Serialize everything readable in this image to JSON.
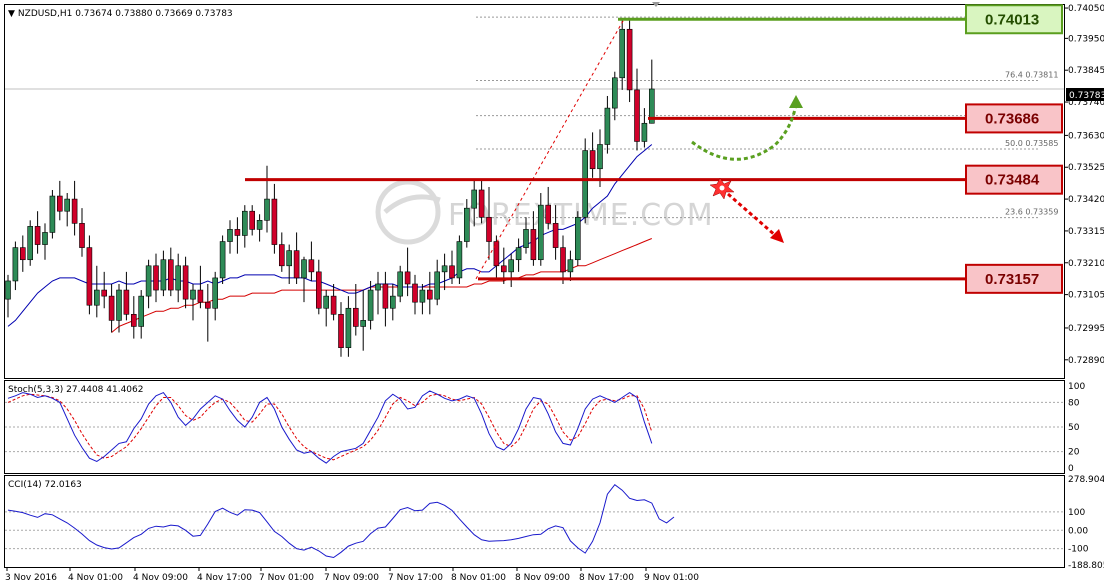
{
  "main_panel": {
    "info": "NZDUSD,H1  0.73674 0.73880 0.73669 0.73783",
    "current_price": "0.73783",
    "watermark": "FOREXTIME.COM"
  },
  "stoch_panel": {
    "info": "Stoch(5,3,3) 27.4408 41.4062"
  },
  "cci_panel": {
    "info": "CCI(14) 72.0163"
  },
  "chart_data": [
    {
      "type": "candlestick",
      "symbol": "NZDUSD",
      "timeframe": "H1",
      "ylim": [
        0.7283,
        0.7406
      ],
      "y_ticks": [
        "0.74050",
        "0.73950",
        "0.73845",
        "0.73740",
        "0.73630",
        "0.73525",
        "0.73420",
        "0.73315",
        "0.73210",
        "0.73105",
        "0.72995",
        "0.72890"
      ],
      "x_ticks": [
        "3 Nov 2016",
        "4 Nov 01:00",
        "4 Nov 09:00",
        "4 Nov 17:00",
        "7 Nov 01:00",
        "7 Nov 09:00",
        "7 Nov 17:00",
        "8 Nov 01:00",
        "8 Nov 09:00",
        "8 Nov 17:00",
        "9 Nov 01:00"
      ],
      "levels": [
        {
          "label": "0.74013",
          "value": 0.74013,
          "color": "#5a9e1e"
        },
        {
          "label": "0.73686",
          "value": 0.73686,
          "color": "#c00000"
        },
        {
          "label": "0.73484",
          "value": 0.73484,
          "color": "#c00000"
        },
        {
          "label": "0.73157",
          "value": 0.73157,
          "color": "#c00000"
        }
      ],
      "fibo": [
        {
          "label": "76.4",
          "price": "0.73811",
          "value": 0.73811
        },
        {
          "label": "50.0",
          "price": "0.73585",
          "value": 0.73585
        },
        {
          "label": "23.6",
          "price": "0.73359",
          "value": 0.73359
        }
      ],
      "fibo_extra_levels": [
        0.7402,
        0.73695
      ],
      "candles": [
        [
          0.7309,
          0.7317,
          0.7303,
          0.7315
        ],
        [
          0.7315,
          0.7328,
          0.7312,
          0.7326
        ],
        [
          0.7326,
          0.733,
          0.7318,
          0.7322
        ],
        [
          0.7322,
          0.7335,
          0.732,
          0.7333
        ],
        [
          0.7333,
          0.7338,
          0.7324,
          0.7327
        ],
        [
          0.7327,
          0.7334,
          0.7322,
          0.7331
        ],
        [
          0.7331,
          0.7345,
          0.7329,
          0.7343
        ],
        [
          0.7343,
          0.7348,
          0.7335,
          0.7338
        ],
        [
          0.7338,
          0.7344,
          0.7333,
          0.7342
        ],
        [
          0.7342,
          0.7348,
          0.733,
          0.7334
        ],
        [
          0.7334,
          0.7339,
          0.7323,
          0.7326
        ],
        [
          0.7326,
          0.733,
          0.7304,
          0.7307
        ],
        [
          0.7307,
          0.732,
          0.7303,
          0.7312
        ],
        [
          0.7312,
          0.7318,
          0.7306,
          0.731
        ],
        [
          0.731,
          0.7314,
          0.7298,
          0.7302
        ],
        [
          0.7302,
          0.7314,
          0.7298,
          0.7312
        ],
        [
          0.7312,
          0.7318,
          0.7302,
          0.7304
        ],
        [
          0.7304,
          0.731,
          0.7296,
          0.73
        ],
        [
          0.73,
          0.7312,
          0.7296,
          0.731
        ],
        [
          0.731,
          0.7322,
          0.7306,
          0.732
        ],
        [
          0.732,
          0.7324,
          0.7308,
          0.7312
        ],
        [
          0.7312,
          0.7325,
          0.731,
          0.7322
        ],
        [
          0.7322,
          0.7326,
          0.731,
          0.7312
        ],
        [
          0.7312,
          0.7324,
          0.7308,
          0.732
        ],
        [
          0.732,
          0.7323,
          0.7306,
          0.7309
        ],
        [
          0.7309,
          0.7314,
          0.7302,
          0.7312
        ],
        [
          0.7312,
          0.732,
          0.7306,
          0.7308
        ],
        [
          0.7308,
          0.7314,
          0.7295,
          0.7306
        ],
        [
          0.7306,
          0.7318,
          0.7302,
          0.7316
        ],
        [
          0.7316,
          0.733,
          0.7314,
          0.7328
        ],
        [
          0.7328,
          0.7335,
          0.7324,
          0.7332
        ],
        [
          0.7332,
          0.7336,
          0.7324,
          0.733
        ],
        [
          0.733,
          0.734,
          0.7326,
          0.7338
        ],
        [
          0.7338,
          0.734,
          0.733,
          0.7332
        ],
        [
          0.7332,
          0.7337,
          0.7328,
          0.7335
        ],
        [
          0.7335,
          0.7353,
          0.7331,
          0.7342
        ],
        [
          0.7342,
          0.7347,
          0.7324,
          0.7327
        ],
        [
          0.7327,
          0.7331,
          0.7318,
          0.732
        ],
        [
          0.732,
          0.7327,
          0.7314,
          0.7325
        ],
        [
          0.7325,
          0.7331,
          0.7314,
          0.7316
        ],
        [
          0.7316,
          0.7323,
          0.7308,
          0.7322
        ],
        [
          0.7322,
          0.7328,
          0.7315,
          0.7318
        ],
        [
          0.7318,
          0.7322,
          0.7304,
          0.7306
        ],
        [
          0.7306,
          0.7312,
          0.73,
          0.731
        ],
        [
          0.731,
          0.7314,
          0.7302,
          0.7304
        ],
        [
          0.7304,
          0.7308,
          0.729,
          0.7293
        ],
        [
          0.7293,
          0.731,
          0.729,
          0.7306
        ],
        [
          0.7306,
          0.7314,
          0.7297,
          0.73
        ],
        [
          0.73,
          0.7312,
          0.7292,
          0.7302
        ],
        [
          0.7302,
          0.7315,
          0.7299,
          0.7312
        ],
        [
          0.7312,
          0.7318,
          0.7304,
          0.7314
        ],
        [
          0.7314,
          0.7318,
          0.73,
          0.7306
        ],
        [
          0.7306,
          0.7314,
          0.7302,
          0.731
        ],
        [
          0.731,
          0.732,
          0.7308,
          0.7318
        ],
        [
          0.7318,
          0.7326,
          0.731,
          0.7314
        ],
        [
          0.7314,
          0.7317,
          0.7304,
          0.7308
        ],
        [
          0.7308,
          0.7314,
          0.7304,
          0.7312
        ],
        [
          0.7312,
          0.7318,
          0.7304,
          0.7309
        ],
        [
          0.7309,
          0.7322,
          0.7307,
          0.7318
        ],
        [
          0.7318,
          0.7324,
          0.7312,
          0.732
        ],
        [
          0.732,
          0.7325,
          0.7314,
          0.7316
        ],
        [
          0.7316,
          0.733,
          0.7314,
          0.7328
        ],
        [
          0.7328,
          0.7342,
          0.7326,
          0.7339
        ],
        [
          0.7339,
          0.7348,
          0.7333,
          0.7345
        ],
        [
          0.7345,
          0.7348,
          0.7334,
          0.7336
        ],
        [
          0.7336,
          0.7346,
          0.7322,
          0.7328
        ],
        [
          0.7328,
          0.733,
          0.7316,
          0.732
        ],
        [
          0.732,
          0.7326,
          0.7314,
          0.7318
        ],
        [
          0.7318,
          0.7324,
          0.7313,
          0.7322
        ],
        [
          0.7322,
          0.7329,
          0.7318,
          0.7326
        ],
        [
          0.7326,
          0.7336,
          0.7324,
          0.7332
        ],
        [
          0.7332,
          0.7338,
          0.732,
          0.7322
        ],
        [
          0.7322,
          0.7344,
          0.732,
          0.734
        ],
        [
          0.734,
          0.7346,
          0.7332,
          0.7334
        ],
        [
          0.7334,
          0.734,
          0.7322,
          0.7326
        ],
        [
          0.7326,
          0.733,
          0.7314,
          0.7318
        ],
        [
          0.7318,
          0.7325,
          0.7315,
          0.7322
        ],
        [
          0.7322,
          0.7338,
          0.732,
          0.7336
        ],
        [
          0.7336,
          0.7362,
          0.7334,
          0.7358
        ],
        [
          0.7358,
          0.7364,
          0.7349,
          0.7352
        ],
        [
          0.7352,
          0.7365,
          0.7346,
          0.736
        ],
        [
          0.736,
          0.7376,
          0.7357,
          0.7372
        ],
        [
          0.7372,
          0.7384,
          0.7368,
          0.7382
        ],
        [
          0.7382,
          0.7401,
          0.7378,
          0.7398
        ],
        [
          0.7398,
          0.7401,
          0.7374,
          0.7378
        ],
        [
          0.7378,
          0.7385,
          0.7358,
          0.7361
        ],
        [
          0.7361,
          0.7372,
          0.7359,
          0.7367
        ],
        [
          0.7367,
          0.7388,
          0.73669,
          0.73783
        ]
      ],
      "ma_fast": [
        0.73,
        0.7302,
        0.7305,
        0.7308,
        0.7311,
        0.7313,
        0.7315,
        0.7316,
        0.7316,
        0.7316,
        0.7315,
        0.7314,
        0.7314,
        0.7314,
        0.7314,
        0.7315,
        0.7314,
        0.7314,
        0.7315,
        0.7315,
        0.7315,
        0.7315,
        0.7316,
        0.7315,
        0.7315,
        0.7314,
        0.7314,
        0.7315,
        0.7314,
        0.7315,
        0.7316,
        0.7316,
        0.7317,
        0.7317,
        0.7317,
        0.7317,
        0.7317,
        0.7316,
        0.7316,
        0.7316,
        0.7316,
        0.7315,
        0.7315,
        0.7314,
        0.7313,
        0.7312,
        0.7311,
        0.7311,
        0.7312,
        0.7313,
        0.7314,
        0.7314,
        0.7314,
        0.7313,
        0.7313,
        0.7313,
        0.7313,
        0.7314,
        0.7314,
        0.7315,
        0.7316,
        0.7318,
        0.7319,
        0.7319,
        0.7318,
        0.7318,
        0.732,
        0.7322,
        0.7324,
        0.7326,
        0.7327,
        0.7328,
        0.733,
        0.7331,
        0.7332,
        0.7332,
        0.7333,
        0.7334,
        0.7336,
        0.7339,
        0.7341,
        0.7343,
        0.7347,
        0.735,
        0.7353,
        0.7356,
        0.7358,
        0.736
      ],
      "ma_slow": [
        null,
        null,
        null,
        null,
        null,
        null,
        null,
        null,
        null,
        null,
        null,
        null,
        null,
        null,
        0.7298,
        0.73,
        0.7301,
        0.7302,
        0.7303,
        0.7304,
        0.7305,
        0.7305,
        0.7306,
        0.7306,
        0.7307,
        0.7307,
        0.7308,
        0.7308,
        0.7309,
        0.7309,
        0.731,
        0.731,
        0.731,
        0.7311,
        0.7311,
        0.7311,
        0.7311,
        0.7312,
        0.7312,
        0.7312,
        0.7312,
        0.7312,
        0.7312,
        0.7312,
        0.7312,
        0.7312,
        0.7312,
        0.7312,
        0.7312,
        0.7313,
        0.7313,
        0.7313,
        0.7313,
        0.7313,
        0.7313,
        0.7313,
        0.7313,
        0.7313,
        0.7313,
        0.7313,
        0.7313,
        0.7313,
        0.7313,
        0.7314,
        0.7314,
        0.7315,
        0.7315,
        0.7315,
        0.7316,
        0.7316,
        0.7317,
        0.7317,
        0.7318,
        0.7318,
        0.7318,
        0.7318,
        0.7319,
        0.732,
        0.732,
        0.7321,
        0.7322,
        0.7323,
        0.7324,
        0.7325,
        0.7326,
        0.7327,
        0.7328,
        0.7329
      ]
    },
    {
      "type": "line",
      "title": "Stoch(5,3,3) 27.4408 41.4062",
      "ylim": [
        0,
        100
      ],
      "y_ticks": [
        "100",
        "80",
        "50",
        "20",
        "0"
      ],
      "levels": [
        80,
        50,
        20
      ],
      "series": [
        {
          "values": [
            85,
            88,
            92,
            90,
            86,
            88,
            85,
            80,
            60,
            40,
            25,
            12,
            8,
            14,
            22,
            30,
            32,
            48,
            60,
            78,
            88,
            92,
            80,
            62,
            52,
            60,
            72,
            80,
            88,
            84,
            70,
            58,
            50,
            62,
            80,
            86,
            72,
            50,
            35,
            22,
            18,
            20,
            12,
            6,
            14,
            20,
            22,
            24,
            30,
            46,
            62,
            82,
            90,
            84,
            72,
            74,
            88,
            94,
            90,
            85,
            82,
            84,
            88,
            85,
            66,
            42,
            26,
            22,
            30,
            48,
            72,
            86,
            84,
            66,
            44,
            30,
            28,
            48,
            72,
            84,
            88,
            84,
            80,
            86,
            92,
            86,
            56,
            30
          ]
        },
        {
          "values": [
            80,
            84,
            88,
            90,
            89,
            88,
            86,
            82,
            72,
            58,
            42,
            28,
            16,
            12,
            14,
            20,
            26,
            36,
            48,
            62,
            76,
            86,
            86,
            76,
            64,
            58,
            62,
            72,
            80,
            84,
            80,
            70,
            58,
            56,
            66,
            78,
            78,
            66,
            50,
            36,
            26,
            20,
            16,
            12,
            10,
            14,
            18,
            22,
            26,
            34,
            46,
            62,
            78,
            86,
            82,
            76,
            80,
            88,
            90,
            88,
            84,
            82,
            84,
            86,
            78,
            62,
            44,
            30,
            26,
            34,
            52,
            72,
            82,
            78,
            62,
            44,
            34,
            38,
            54,
            72,
            82,
            84,
            82,
            84,
            88,
            88,
            72,
            44
          ]
        }
      ]
    },
    {
      "type": "line",
      "title": "CCI(14) 72.0163",
      "ylim": [
        -188.805,
        278.9044
      ],
      "y_ticks": [
        "278.9044",
        "100",
        "0.00",
        "-100",
        "-188.8050"
      ],
      "levels": [
        100,
        0,
        -100
      ],
      "series": [
        {
          "values": [
            110,
            104,
            96,
            82,
            70,
            90,
            84,
            62,
            40,
            12,
            -20,
            -56,
            -80,
            -94,
            -102,
            -96,
            -68,
            -40,
            -22,
            10,
            22,
            18,
            28,
            24,
            0,
            -32,
            -28,
            34,
            102,
            120,
            98,
            82,
            112,
            110,
            96,
            46,
            -6,
            -34,
            -70,
            -100,
            -108,
            -92,
            -112,
            -140,
            -148,
            -120,
            -86,
            -70,
            -60,
            -18,
            12,
            18,
            64,
            112,
            124,
            106,
            110,
            146,
            152,
            136,
            108,
            62,
            18,
            -24,
            -52,
            -60,
            -58,
            -56,
            -52,
            -44,
            -34,
            -24,
            -22,
            8,
            24,
            14,
            -58,
            -96,
            -124,
            -60,
            40,
            196,
            248,
            218,
            174,
            162,
            166,
            148,
            62,
            40,
            72
          ]
        }
      ]
    }
  ]
}
